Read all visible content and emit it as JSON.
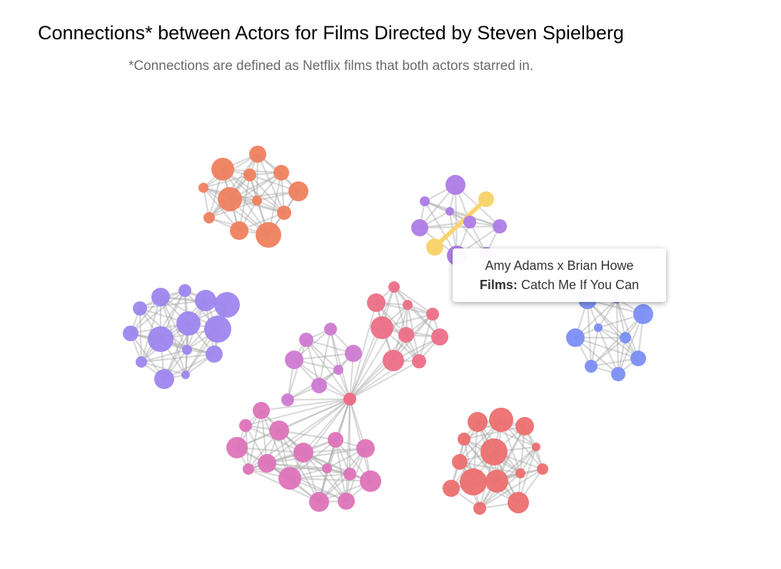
{
  "header": {
    "title": "Connections* between Actors for Films Directed by Steven Spielberg",
    "subtitle": "*Connections are defined as Netflix films that both actors starred in."
  },
  "tooltip": {
    "pair": "Amy Adams x Brian Howe",
    "films_label": "Films:",
    "films_value": "Catch Me If You Can"
  },
  "colors": {
    "edge": "#a9a9a9",
    "highlight": "#f8d46f",
    "orange": "#ee815f",
    "violet": "#ad7be6",
    "lavender": "#9e86ee",
    "blue": "#7b8ef5",
    "pink": "#dd74b9",
    "rose": "#ec6f88",
    "orchid": "#cf7ad2",
    "red": "#ec6f6f"
  },
  "highlighted_edge": [
    "Amy Adams",
    "Brian Howe"
  ]
}
